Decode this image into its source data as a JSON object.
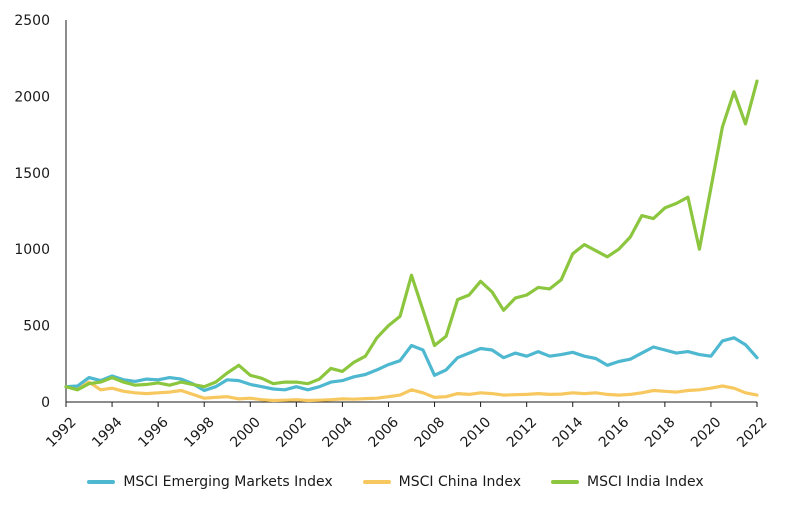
{
  "chart_data": {
    "type": "line",
    "title": "",
    "xlabel": "",
    "ylabel": "",
    "xlim": [
      1992,
      2022
    ],
    "ylim": [
      0,
      2500
    ],
    "x_ticks": [
      1992,
      1994,
      1996,
      1998,
      2000,
      2002,
      2004,
      2006,
      2008,
      2010,
      2012,
      2014,
      2016,
      2018,
      2020,
      2022
    ],
    "y_ticks": [
      0,
      500,
      1000,
      1500,
      2000,
      2500
    ],
    "grid": false,
    "legend_position": "bottom",
    "series": [
      {
        "name": "MSCI Emerging Markets Index",
        "color": "#4db8d0",
        "x": [
          1992,
          1992.5,
          1993,
          1993.5,
          1994,
          1994.5,
          1995,
          1995.5,
          1996,
          1996.5,
          1997,
          1997.5,
          1998,
          1998.5,
          1999,
          1999.5,
          2000,
          2000.5,
          2001,
          2001.5,
          2002,
          2002.5,
          2003,
          2003.5,
          2004,
          2004.5,
          2005,
          2005.5,
          2006,
          2006.5,
          2007,
          2007.5,
          2008,
          2008.5,
          2009,
          2009.5,
          2010,
          2010.5,
          2011,
          2011.5,
          2012,
          2012.5,
          2013,
          2013.5,
          2014,
          2014.5,
          2015,
          2015.5,
          2016,
          2016.5,
          2017,
          2017.5,
          2018,
          2018.5,
          2019,
          2019.5,
          2020,
          2020.5,
          2021,
          2021.5,
          2022
        ],
        "values": [
          100,
          105,
          160,
          140,
          170,
          145,
          135,
          150,
          145,
          160,
          150,
          120,
          75,
          100,
          145,
          140,
          115,
          100,
          85,
          80,
          100,
          80,
          100,
          130,
          140,
          165,
          180,
          210,
          245,
          270,
          370,
          340,
          175,
          210,
          290,
          320,
          350,
          340,
          290,
          320,
          300,
          330,
          300,
          310,
          325,
          300,
          285,
          240,
          265,
          280,
          320,
          360,
          340,
          320,
          330,
          310,
          300,
          400,
          420,
          375,
          290
        ]
      },
      {
        "name": "MSCI China Index",
        "color": "#f7c85f",
        "x": [
          1992,
          1992.5,
          1993,
          1993.5,
          1994,
          1994.5,
          1995,
          1995.5,
          1996,
          1996.5,
          1997,
          1997.5,
          1998,
          1998.5,
          1999,
          1999.5,
          2000,
          2000.5,
          2001,
          2001.5,
          2002,
          2002.5,
          2003,
          2003.5,
          2004,
          2004.5,
          2005,
          2005.5,
          2006,
          2006.5,
          2007,
          2007.5,
          2008,
          2008.5,
          2009,
          2009.5,
          2010,
          2010.5,
          2011,
          2011.5,
          2012,
          2012.5,
          2013,
          2013.5,
          2014,
          2014.5,
          2015,
          2015.5,
          2016,
          2016.5,
          2017,
          2017.5,
          2018,
          2018.5,
          2019,
          2019.5,
          2020,
          2020.5,
          2021,
          2021.5,
          2022
        ],
        "values": [
          100,
          85,
          130,
          80,
          90,
          70,
          60,
          55,
          60,
          65,
          75,
          50,
          25,
          30,
          35,
          20,
          25,
          15,
          10,
          12,
          15,
          10,
          12,
          15,
          20,
          18,
          22,
          25,
          35,
          45,
          80,
          60,
          30,
          35,
          55,
          50,
          60,
          55,
          45,
          48,
          50,
          55,
          50,
          52,
          60,
          55,
          60,
          50,
          45,
          50,
          60,
          75,
          70,
          65,
          75,
          80,
          90,
          105,
          90,
          60,
          45
        ]
      },
      {
        "name": "MSCI India Index",
        "color": "#8cc63f",
        "x": [
          1992,
          1992.5,
          1993,
          1993.5,
          1994,
          1994.5,
          1995,
          1995.5,
          1996,
          1996.5,
          1997,
          1997.5,
          1998,
          1998.5,
          1999,
          1999.5,
          2000,
          2000.5,
          2001,
          2001.5,
          2002,
          2002.5,
          2003,
          2003.5,
          2004,
          2004.5,
          2005,
          2005.5,
          2006,
          2006.5,
          2007,
          2007.5,
          2008,
          2008.5,
          2009,
          2009.5,
          2010,
          2010.5,
          2011,
          2011.5,
          2012,
          2012.5,
          2013,
          2013.5,
          2014,
          2014.5,
          2015,
          2015.5,
          2016,
          2016.5,
          2017,
          2017.5,
          2018,
          2018.5,
          2019,
          2019.5,
          2020,
          2020.5,
          2021,
          2021.5,
          2022
        ],
        "values": [
          100,
          80,
          120,
          130,
          160,
          130,
          110,
          115,
          125,
          110,
          130,
          115,
          100,
          130,
          190,
          240,
          175,
          155,
          120,
          130,
          130,
          120,
          150,
          220,
          200,
          260,
          300,
          420,
          500,
          560,
          830,
          600,
          370,
          430,
          670,
          700,
          790,
          720,
          600,
          680,
          700,
          750,
          740,
          800,
          970,
          1030,
          990,
          950,
          1000,
          1080,
          1220,
          1200,
          1270,
          1300,
          1340,
          1000,
          1400,
          1800,
          2030,
          1820,
          2100
        ]
      }
    ]
  }
}
